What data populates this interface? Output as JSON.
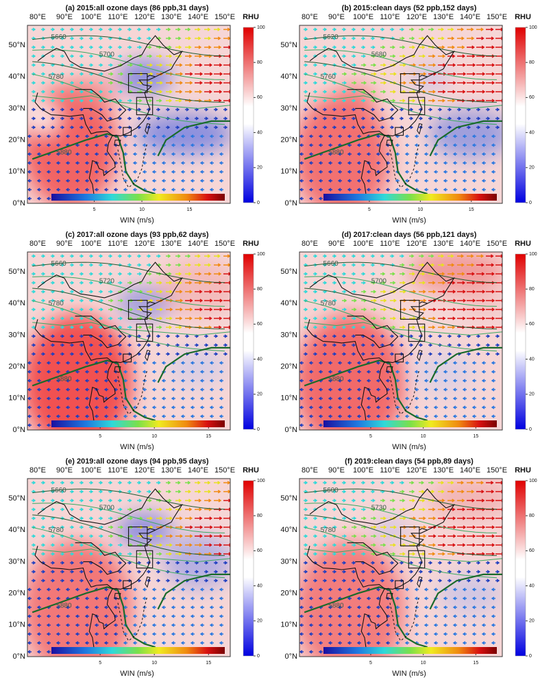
{
  "panels": [
    {
      "title": "(a) 2015:all ozone days (86 ppb,31 days)",
      "wind_lim": [
        0.5,
        18.7
      ],
      "contour_labels": [
        "5660",
        "5700",
        "5780",
        "5880"
      ]
    },
    {
      "title": "(b) 2015:clean days (52 ppb,152 days)",
      "wind_lim": [
        0.5,
        17.5
      ],
      "contour_labels": [
        "5620",
        "5680",
        "5760",
        "5880"
      ]
    },
    {
      "title": "(c) 2017:all ozone days (93 ppb,62 days)",
      "wind_lim": [
        0.5,
        16.5
      ],
      "contour_labels": [
        "5660",
        "5720",
        "5780",
        "5880"
      ]
    },
    {
      "title": "(d) 2017:clean days (56 ppb,121 days)",
      "wind_lim": [
        0.5,
        17
      ],
      "contour_labels": [
        "5660",
        "5700",
        "5780",
        "5880"
      ]
    },
    {
      "title": "(e) 2019:all ozone days (94 ppb,95 days)",
      "wind_lim": [
        0.5,
        16.5
      ],
      "contour_labels": [
        "5660",
        "5700",
        "5780",
        "5880"
      ]
    },
    {
      "title": "(f) 2019:clean days (54 ppb,89 days)",
      "wind_lim": [
        0.5,
        17
      ],
      "contour_labels": [
        "5600",
        "5730",
        "5780",
        "5880"
      ]
    }
  ],
  "lon_labels": [
    "80°E",
    "90°E",
    "100°E",
    "110°E",
    "120°E",
    "130°E",
    "140°E",
    "150°E"
  ],
  "lat_labels": [
    "0°N",
    "10°N",
    "20°N",
    "30°N",
    "40°N",
    "50°N"
  ],
  "rhu_colorbar": {
    "label": "RHU",
    "lim": [
      0,
      100
    ],
    "ticks": [
      0,
      20,
      40,
      60,
      80,
      100
    ]
  },
  "wind_colorbar": {
    "label": "WIN (m/s)",
    "ticks": [
      5,
      10,
      15
    ]
  }
}
